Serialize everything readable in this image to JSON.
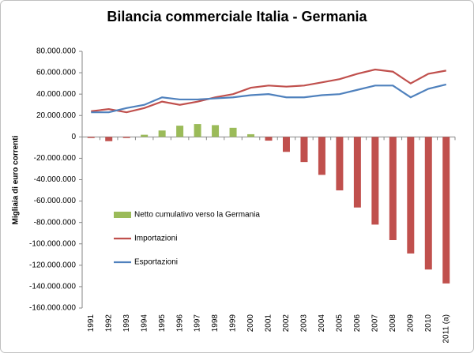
{
  "chart_data": {
    "type": "combo",
    "title": "Bilancia commerciale Italia - Germania",
    "y_label": "Migliaia di euro correnti",
    "categories": [
      "1991",
      "1992",
      "1993",
      "1994",
      "1995",
      "1996",
      "1997",
      "1998",
      "1999",
      "2000",
      "2001",
      "2002",
      "2003",
      "2004",
      "2005",
      "2006",
      "2007",
      "2008",
      "2009",
      "2010",
      "2011 (a)"
    ],
    "series": [
      {
        "name": "Netto cumulativo verso la Germania",
        "type": "bar",
        "color": "#9bbb59",
        "negative_color": "#c0504d",
        "values": [
          -1000000,
          -4000000,
          -1000000,
          2000000,
          6000000,
          10500000,
          12000000,
          11000000,
          8500000,
          2500000,
          -3500000,
          -14000000,
          -23500000,
          -35500000,
          -50000000,
          -66000000,
          -82000000,
          -96500000,
          -109000000,
          -124000000,
          -137000000
        ]
      },
      {
        "name": "Importazioni",
        "type": "line",
        "color": "#c0504d",
        "values": [
          24000000,
          26000000,
          23000000,
          27000000,
          33000000,
          30000000,
          33000000,
          37000000,
          40000000,
          46000000,
          48000000,
          47000000,
          48000000,
          51000000,
          54000000,
          59000000,
          63000000,
          61000000,
          50000000,
          59000000,
          62000000
        ]
      },
      {
        "name": "Esportazioni",
        "type": "line",
        "color": "#4f81bd",
        "values": [
          23000000,
          23000000,
          27000000,
          30000000,
          37000000,
          35000000,
          35000000,
          36000000,
          37000000,
          39000000,
          40000000,
          37000000,
          37000000,
          39000000,
          40000000,
          44000000,
          48000000,
          48000000,
          37000000,
          45000000,
          49000000
        ]
      }
    ],
    "ylim": [
      -160000000,
      80000000
    ],
    "yticks": [
      {
        "value": 80000000,
        "label": "80.000.000"
      },
      {
        "value": 60000000,
        "label": "60.000.000"
      },
      {
        "value": 40000000,
        "label": "40.000.000"
      },
      {
        "value": 20000000,
        "label": "20.000.000"
      },
      0,
      {
        "value": -20000000,
        "label": "-20.000.000"
      },
      {
        "value": -40000000,
        "label": "-40.000.000"
      },
      {
        "value": -60000000,
        "label": "-60.000.000"
      },
      {
        "value": -80000000,
        "label": "-80.000.000"
      },
      {
        "value": -100000000,
        "label": "-100.000.000"
      },
      {
        "value": -120000000,
        "label": "-120.000.000"
      },
      {
        "value": -140000000,
        "label": "-140.000.000"
      },
      {
        "value": -160000000,
        "label": "-160.000.000"
      }
    ],
    "grid": false,
    "legend_position": "lower-left"
  }
}
